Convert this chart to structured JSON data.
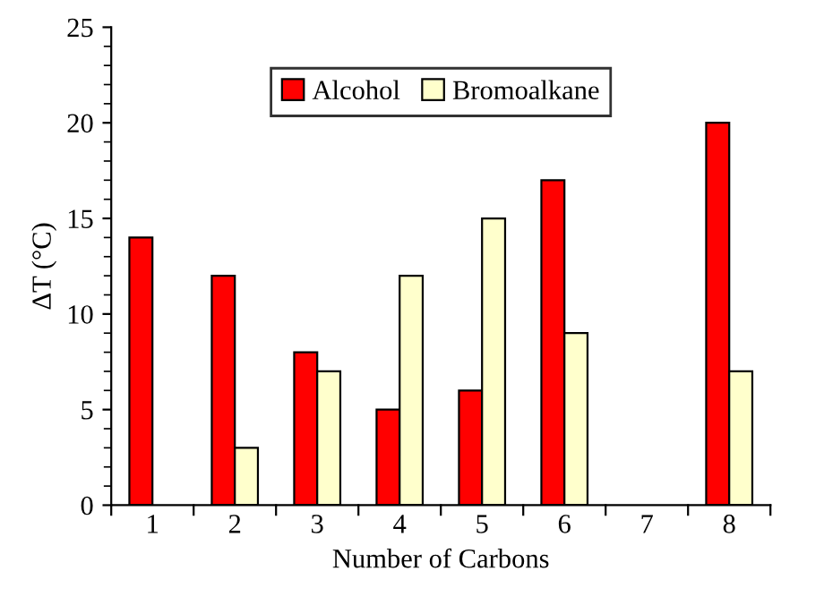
{
  "chart_data": {
    "type": "bar",
    "xlabel": "Number of Carbons",
    "ylabel": "ΔT (°C)",
    "categories": [
      "1",
      "2",
      "3",
      "4",
      "5",
      "6",
      "7",
      "8"
    ],
    "series": [
      {
        "name": "Alcohol",
        "color": "#ff0000",
        "values": [
          14,
          12,
          8,
          5,
          6,
          17,
          null,
          20
        ]
      },
      {
        "name": "Bromoalkane",
        "color": "#ffffcc",
        "values": [
          null,
          3,
          7,
          12,
          15,
          9,
          null,
          7
        ]
      }
    ],
    "ylim": [
      0,
      25
    ],
    "yticks": [
      0,
      5,
      10,
      15,
      20,
      25
    ],
    "grid": false,
    "legend": "top"
  }
}
